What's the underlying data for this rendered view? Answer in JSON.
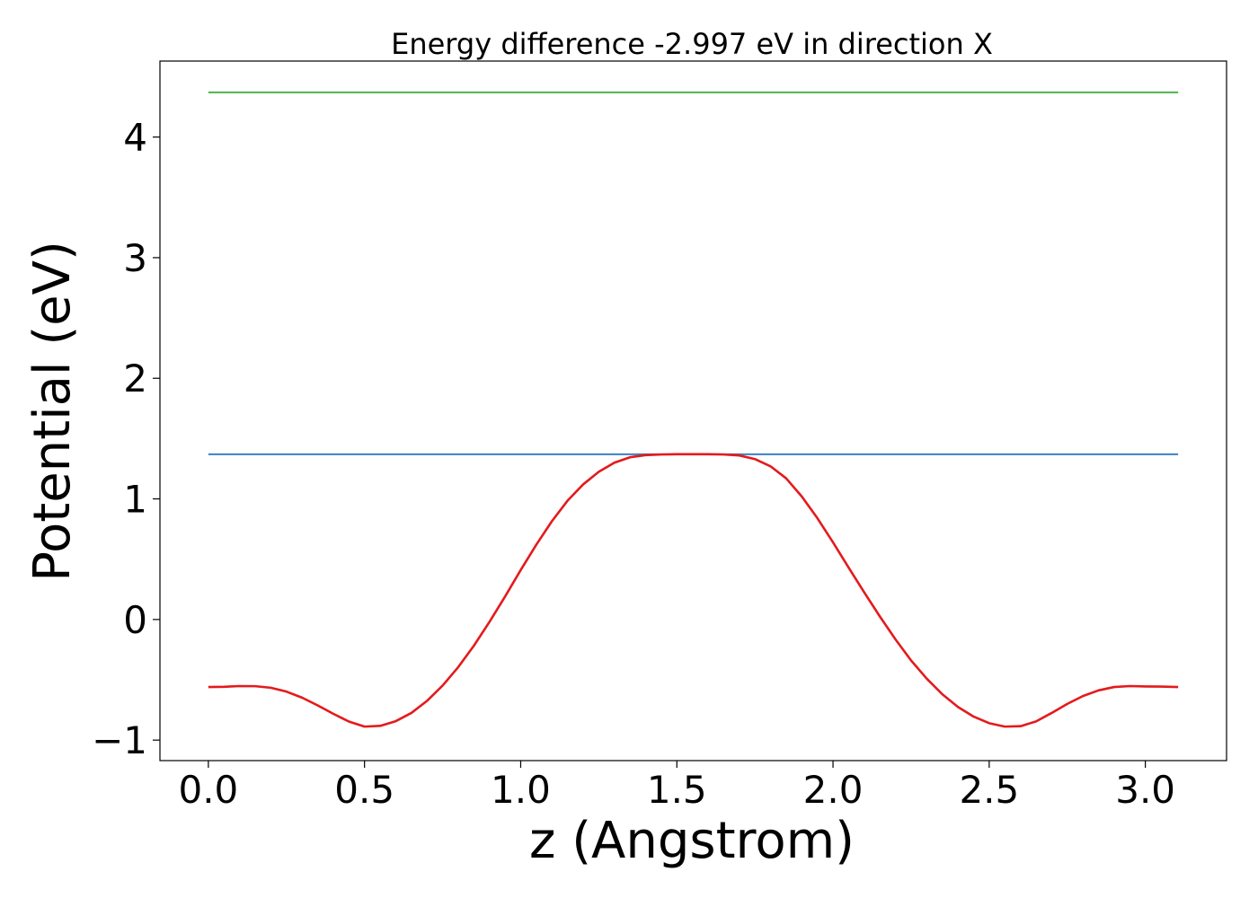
{
  "chart_data": {
    "type": "line",
    "title": "Energy difference -2.997 eV in direction X",
    "xlabel": "z (Angstrom)",
    "ylabel": "Potential (eV)",
    "xlim": [
      -0.155,
      3.26
    ],
    "ylim": [
      -1.17,
      4.63
    ],
    "xticks": [
      0.0,
      0.5,
      1.0,
      1.5,
      2.0,
      2.5,
      3.0
    ],
    "xtick_labels": [
      "0.0",
      "0.5",
      "1.0",
      "1.5",
      "2.0",
      "2.5",
      "3.0"
    ],
    "yticks": [
      -1,
      0,
      1,
      2,
      3,
      4
    ],
    "ytick_labels": [
      "−1",
      "0",
      "1",
      "2",
      "3",
      "4"
    ],
    "grid": false,
    "series": [
      {
        "color": "#4db34d",
        "x": [
          0.0,
          3.105
        ],
        "y": [
          4.37,
          4.37
        ]
      },
      {
        "color": "#3a81c4",
        "x": [
          0.0,
          3.105
        ],
        "y": [
          1.37,
          1.37
        ]
      },
      {
        "color": "#e41a1c",
        "x": [
          0.0,
          0.05,
          0.1,
          0.15,
          0.2,
          0.25,
          0.3,
          0.35,
          0.4,
          0.45,
          0.5,
          0.55,
          0.6,
          0.65,
          0.7,
          0.75,
          0.8,
          0.85,
          0.9,
          0.95,
          1.0,
          1.05,
          1.1,
          1.15,
          1.2,
          1.25,
          1.3,
          1.35,
          1.4,
          1.45,
          1.5,
          1.55,
          1.6,
          1.65,
          1.7,
          1.75,
          1.8,
          1.85,
          1.9,
          1.95,
          2.0,
          2.05,
          2.1,
          2.15,
          2.2,
          2.25,
          2.3,
          2.35,
          2.4,
          2.45,
          2.5,
          2.55,
          2.6,
          2.65,
          2.7,
          2.75,
          2.8,
          2.85,
          2.9,
          2.95,
          3.0,
          3.05,
          3.105
        ],
        "y": [
          -0.56,
          -0.558,
          -0.552,
          -0.553,
          -0.566,
          -0.598,
          -0.648,
          -0.712,
          -0.782,
          -0.846,
          -0.888,
          -0.882,
          -0.843,
          -0.775,
          -0.675,
          -0.548,
          -0.395,
          -0.218,
          -0.02,
          0.19,
          0.41,
          0.62,
          0.815,
          0.985,
          1.12,
          1.225,
          1.3,
          1.345,
          1.363,
          1.368,
          1.37,
          1.37,
          1.37,
          1.368,
          1.36,
          1.33,
          1.27,
          1.17,
          1.02,
          0.84,
          0.64,
          0.43,
          0.225,
          0.025,
          -0.165,
          -0.34,
          -0.49,
          -0.62,
          -0.725,
          -0.805,
          -0.86,
          -0.888,
          -0.885,
          -0.845,
          -0.775,
          -0.7,
          -0.635,
          -0.588,
          -0.56,
          -0.552,
          -0.555,
          -0.556,
          -0.56
        ]
      }
    ]
  }
}
